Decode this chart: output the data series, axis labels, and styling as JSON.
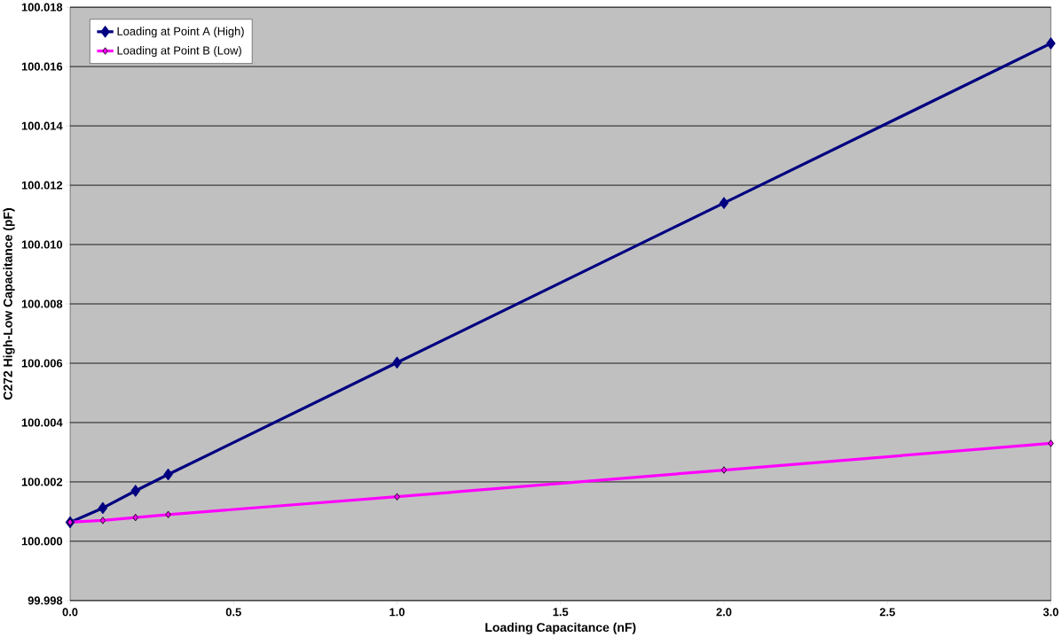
{
  "chart_data": {
    "type": "line",
    "xlabel": "Loading Capacitance (nF)",
    "ylabel": "C272 High-Low Capacitance (pF)",
    "x": [
      0.0,
      0.1,
      0.2,
      0.3,
      1.0,
      2.0,
      3.0
    ],
    "series": [
      {
        "name": "Loading at Point A (High)",
        "color": "#000080",
        "values": [
          100.00064,
          100.00112,
          100.0017,
          100.00225,
          100.00602,
          100.0114,
          100.01678
        ]
      },
      {
        "name": "Loading at Point B (Low)",
        "color": "#ff00ff",
        "values": [
          100.00064,
          100.0007,
          100.0008,
          100.0009,
          100.0015,
          100.0024,
          100.0033
        ]
      }
    ],
    "xlim": [
      0,
      3
    ],
    "xticks": [
      {
        "value": 0,
        "label": "0.0"
      },
      {
        "value": 0.5,
        "label": "0.5"
      },
      {
        "value": 1,
        "label": "1.0"
      },
      {
        "value": 1.5,
        "label": "1.5"
      },
      {
        "value": 2,
        "label": "2.0"
      },
      {
        "value": 2.5,
        "label": "2.5"
      },
      {
        "value": 3,
        "label": "3.0"
      }
    ],
    "ylim": [
      99.998,
      100.018
    ],
    "yticks": [
      {
        "value": 99.998,
        "label": "99.998"
      },
      {
        "value": 100.0,
        "label": "100.000"
      },
      {
        "value": 100.002,
        "label": "100.002"
      },
      {
        "value": 100.004,
        "label": "100.004"
      },
      {
        "value": 100.006,
        "label": "100.006"
      },
      {
        "value": 100.008,
        "label": "100.008"
      },
      {
        "value": 100.01,
        "label": "100.010"
      },
      {
        "value": 100.012,
        "label": "100.012"
      },
      {
        "value": 100.014,
        "label": "100.014"
      },
      {
        "value": 100.016,
        "label": "100.016"
      },
      {
        "value": 100.018,
        "label": "100.018"
      }
    ],
    "grid": "y",
    "legend": "top left",
    "marker": "diamond",
    "line_style": "solid"
  }
}
